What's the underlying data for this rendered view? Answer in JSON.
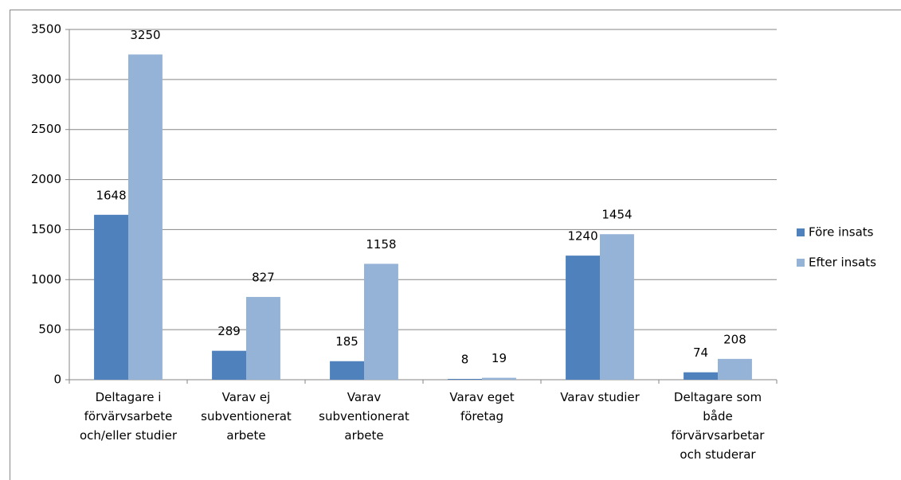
{
  "chart_data": {
    "type": "bar",
    "categories": [
      "Deltagare i\nförvärvsarbete\noch/eller studier",
      "Varav ej\nsubventionerat\narbete",
      "Varav\nsubventionerat\narbete",
      "Varav eget\nföretag",
      "Varav studier",
      "Deltagare som\nbåde\nförvärvsarbetar\noch studerar"
    ],
    "series": [
      {
        "name": "Före insats",
        "color": "#4f81bd",
        "values": [
          1648,
          289,
          185,
          8,
          1240,
          74
        ]
      },
      {
        "name": "Efter insats",
        "color": "#95b3d7",
        "values": [
          3250,
          827,
          1158,
          19,
          1454,
          208
        ]
      }
    ],
    "ylim": [
      0,
      3500
    ],
    "yticks": [
      0,
      500,
      1000,
      1500,
      2000,
      2500,
      3000,
      3500
    ],
    "grid": true,
    "legend": "right"
  }
}
